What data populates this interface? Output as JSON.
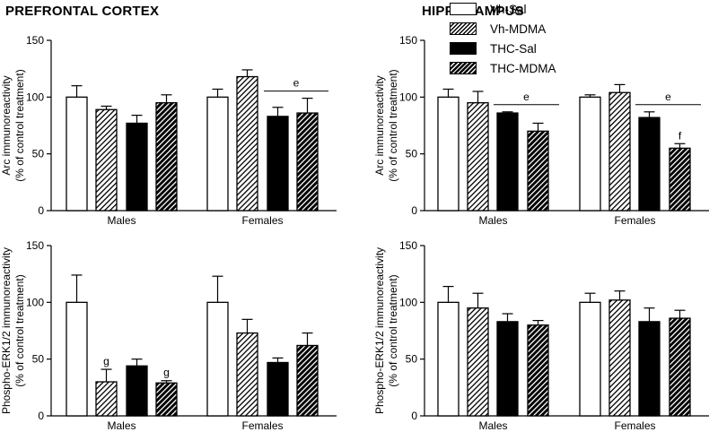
{
  "titles": {
    "left": "PREFRONTAL CORTEX",
    "right": "HIPPOCAMPUS"
  },
  "legend": [
    {
      "name": "Vh-Sal",
      "pattern": "open"
    },
    {
      "name": "Vh-MDMA",
      "pattern": "hatched"
    },
    {
      "name": "THC-Sal",
      "pattern": "solid"
    },
    {
      "name": "THC-MDMA",
      "pattern": "dark-hatched"
    }
  ],
  "chart_data": [
    {
      "type": "bar",
      "panel": "prefrontal-arc",
      "categories": [
        "Males",
        "Females"
      ],
      "series": [
        {
          "name": "Vh-Sal",
          "values": [
            100,
            100
          ],
          "errors": [
            10,
            7
          ]
        },
        {
          "name": "Vh-MDMA",
          "values": [
            89,
            118
          ],
          "errors": [
            3,
            6
          ]
        },
        {
          "name": "THC-Sal",
          "values": [
            77,
            83
          ],
          "errors": [
            7,
            8
          ]
        },
        {
          "name": "THC-MDMA",
          "values": [
            95,
            86
          ],
          "errors": [
            7,
            13
          ]
        }
      ],
      "ylabel": [
        "Arc immunoreactivity",
        "(% of control treatment)"
      ],
      "ylim": [
        0,
        150
      ],
      "yticks": [
        "0",
        "50",
        "100",
        "150"
      ],
      "annotations": [
        {
          "text": "e",
          "line_over": {
            "category": 1,
            "series": [
              "THC-Sal",
              "THC-MDMA"
            ]
          }
        }
      ]
    },
    {
      "type": "bar",
      "panel": "hippocampus-arc",
      "categories": [
        "Males",
        "Females"
      ],
      "series": [
        {
          "name": "Vh-Sal",
          "values": [
            100,
            100
          ],
          "errors": [
            7,
            2
          ]
        },
        {
          "name": "Vh-MDMA",
          "values": [
            95,
            104
          ],
          "errors": [
            10,
            7
          ]
        },
        {
          "name": "THC-Sal",
          "values": [
            86,
            82
          ],
          "errors": [
            1,
            5
          ]
        },
        {
          "name": "THC-MDMA",
          "values": [
            70,
            55
          ],
          "errors": [
            7,
            4
          ]
        }
      ],
      "ylabel": [
        "Arc immunoreactivity",
        "(% of control treatment)"
      ],
      "ylim": [
        0,
        150
      ],
      "yticks": [
        "0",
        "50",
        "100",
        "150"
      ],
      "annotations": [
        {
          "text": "e",
          "line_over": {
            "category": 0,
            "series": [
              "THC-Sal",
              "THC-MDMA"
            ]
          }
        },
        {
          "text": "e",
          "line_over": {
            "category": 1,
            "series": [
              "THC-Sal",
              "THC-MDMA"
            ]
          }
        },
        {
          "text": "f",
          "above": {
            "category": 1,
            "series": "THC-MDMA"
          }
        }
      ]
    },
    {
      "type": "bar",
      "panel": "prefrontal-perk",
      "categories": [
        "Males",
        "Females"
      ],
      "series": [
        {
          "name": "Vh-Sal",
          "values": [
            100,
            100
          ],
          "errors": [
            24,
            23
          ]
        },
        {
          "name": "Vh-MDMA",
          "values": [
            30,
            73
          ],
          "errors": [
            11,
            12
          ]
        },
        {
          "name": "THC-Sal",
          "values": [
            44,
            47
          ],
          "errors": [
            6,
            4
          ]
        },
        {
          "name": "THC-MDMA",
          "values": [
            29,
            62
          ],
          "errors": [
            2,
            11
          ]
        }
      ],
      "ylabel": [
        "Phospho-ERK1/2 immunoreactivity",
        "(% of control treatment)"
      ],
      "ylim": [
        0,
        150
      ],
      "yticks": [
        "0",
        "50",
        "100",
        "150"
      ],
      "annotations": [
        {
          "text": "g",
          "above": {
            "category": 0,
            "series": "Vh-MDMA"
          }
        },
        {
          "text": "g",
          "above": {
            "category": 0,
            "series": "THC-MDMA"
          }
        }
      ]
    },
    {
      "type": "bar",
      "panel": "hippocampus-perk",
      "categories": [
        "Males",
        "Females"
      ],
      "series": [
        {
          "name": "Vh-Sal",
          "values": [
            100,
            100
          ],
          "errors": [
            14,
            8
          ]
        },
        {
          "name": "Vh-MDMA",
          "values": [
            95,
            102
          ],
          "errors": [
            13,
            8
          ]
        },
        {
          "name": "THC-Sal",
          "values": [
            83,
            83
          ],
          "errors": [
            7,
            12
          ]
        },
        {
          "name": "THC-MDMA",
          "values": [
            80,
            86
          ],
          "errors": [
            4,
            7
          ]
        }
      ],
      "ylabel": [
        "Phospho-ERK1/2 immunoreactivity",
        "(% of control treatment)"
      ],
      "ylim": [
        0,
        150
      ],
      "yticks": [
        "0",
        "50",
        "100",
        "150"
      ],
      "annotations": []
    }
  ]
}
